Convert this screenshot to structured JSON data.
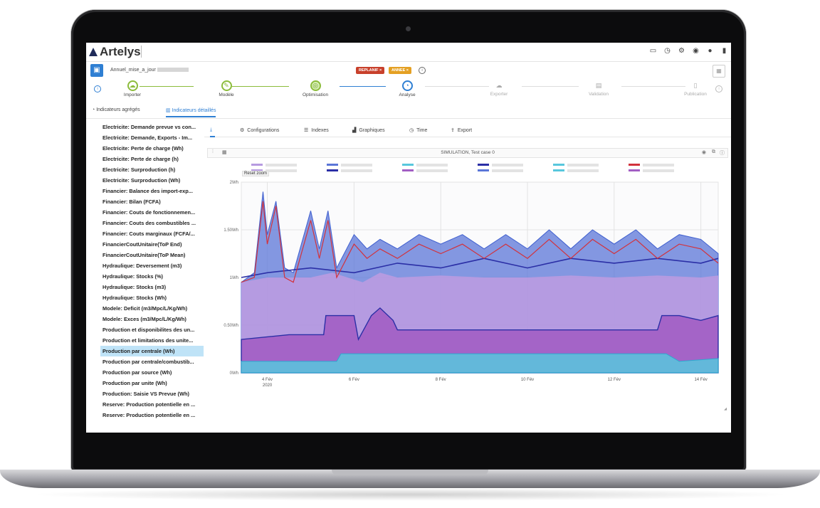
{
  "app": {
    "brand": "Artelys"
  },
  "project": {
    "name": "Annuel_mise_a_jour",
    "tags": [
      "REPLANIF ×",
      "ANNEE ×"
    ]
  },
  "steps": [
    {
      "label": "Importer",
      "icon": "☁",
      "state": "done"
    },
    {
      "label": "Modèle",
      "icon": "✎",
      "state": "done"
    },
    {
      "label": "Optimisation",
      "icon": "◎",
      "state": "opt"
    },
    {
      "label": "Analyse",
      "icon": "◔",
      "state": "active"
    },
    {
      "label": "Exporter",
      "icon": "☁",
      "state": "off"
    },
    {
      "label": "Validation",
      "icon": "▤",
      "state": "off"
    },
    {
      "label": "Publication",
      "icon": "▯",
      "state": "off"
    }
  ],
  "viewtabs": [
    {
      "label": "Indicateurs agrégés",
      "icon": "◔"
    },
    {
      "label": "Indicateurs détaillés",
      "icon": "▥"
    }
  ],
  "sidebar": {
    "selected_index": 22,
    "items": [
      "Electricite: Demande prevue vs con...",
      "Electricite: Demande, Exports - Im...",
      "Electricite: Perte de charge (Wh)",
      "Electricite: Perte de charge (h)",
      "Electricite: Surproduction (h)",
      "Electricite: Surproduction (Wh)",
      "Financier: Balance des import-exp...",
      "Financier: Bilan (FCFA)",
      "Financier: Couts de fonctionnemen...",
      "Financier: Couts des combustibles ...",
      "Financier: Couts marginaux (FCFA/...",
      "FinancierCoutUnitaire(ToP End)",
      "FinancierCoutUnitaire(ToP Mean)",
      "Hydraulique: Deversement (m3)",
      "Hydraulique: Stocks (%)",
      "Hydraulique: Stocks (m3)",
      "Hydraulique: Stocks (Wh)",
      "Modele: Deficit (m3/Mpc/L/Kg/Wh)",
      "Modele: Exces (m3/Mpc/L/Kg/Wh)",
      "Production et disponibilites des un...",
      "Production et limitations des unite...",
      "Production par centrale (Wh)",
      "Production par centrale (Wh)",
      "Production par centrale/combustib...",
      "Production par source (Wh)",
      "Production par unite (Wh)",
      "Production: Saisie VS Prevue (Wh)",
      "Reserve: Production potentielle en ...",
      "Reserve: Production potentielle en ..."
    ]
  },
  "subtabs": [
    {
      "label": "",
      "icon": "⤓"
    },
    {
      "label": "Configurations",
      "icon": "⚙"
    },
    {
      "label": "Indexes",
      "icon": "☰"
    },
    {
      "label": "Graphiques",
      "icon": "▟"
    },
    {
      "label": "Time",
      "icon": "◷"
    },
    {
      "label": "Export",
      "icon": "⇪"
    }
  ],
  "chart_header": {
    "title": "SIMULATION, Test case 0",
    "reset_zoom": "Reset zoom"
  },
  "colors": {
    "accent": "#2f7fd3",
    "area_purple": "#b79be0",
    "area_magenta": "#a25ec4",
    "band_blue": "#5b76d8",
    "band_cyan": "#58c7dd",
    "line_red": "#d2323c",
    "line_navy": "#2b2fa6"
  },
  "chart_data": {
    "type": "area",
    "title": "SIMULATION, Test case 0",
    "ylabel": "",
    "yticks": [
      "0Wh",
      "0.50Wh",
      "1Wh",
      "1.50Wh",
      "2Wh"
    ],
    "ylim": [
      0,
      2.0
    ],
    "xticks": [
      {
        "label": "4 Fév",
        "sub": "2020",
        "day": 4
      },
      {
        "label": "6 Fév",
        "sub": "",
        "day": 6
      },
      {
        "label": "8 Fév",
        "sub": "",
        "day": 8
      },
      {
        "label": "10 Fév",
        "sub": "",
        "day": 10
      },
      {
        "label": "12 Fév",
        "sub": "",
        "day": 12
      },
      {
        "label": "14 Fév",
        "sub": "",
        "day": 14
      }
    ],
    "xlim": [
      3.4,
      14.4
    ],
    "grid": true,
    "series": [
      {
        "style": "base_cyan_band",
        "x": [
          3.4,
          5.6,
          5.7,
          6.0,
          6.5,
          13.2,
          13.5,
          14.4
        ],
        "y": [
          0.12,
          0.12,
          0.2,
          0.2,
          0.2,
          0.2,
          0.12,
          0.15
        ]
      },
      {
        "style": "magenta_area",
        "x": [
          3.4,
          4.5,
          5.3,
          5.35,
          6.0,
          6.1,
          6.4,
          6.6,
          6.9,
          7.0,
          13.0,
          13.1,
          13.5,
          14.0,
          14.4
        ],
        "y": [
          0.35,
          0.4,
          0.4,
          0.6,
          0.6,
          0.35,
          0.6,
          0.68,
          0.55,
          0.45,
          0.45,
          0.6,
          0.6,
          0.55,
          0.6
        ]
      },
      {
        "style": "purple_area",
        "x": [
          3.4,
          4.0,
          5.0,
          5.5,
          6.2,
          6.6,
          7.0,
          8.0,
          9.0,
          10.0,
          11.0,
          12.0,
          13.0,
          14.0,
          14.4
        ],
        "y": [
          0.95,
          1.0,
          1.0,
          1.05,
          0.95,
          1.05,
          1.0,
          1.02,
          1.0,
          1.0,
          1.02,
          1.0,
          1.02,
          1.0,
          1.02
        ]
      },
      {
        "style": "blue_band",
        "x": [
          3.4,
          3.7,
          3.9,
          4.0,
          4.2,
          4.4,
          4.6,
          5.0,
          5.2,
          5.4,
          5.6,
          6.0,
          6.3,
          6.6,
          7.0,
          7.5,
          8.0,
          8.5,
          9.0,
          9.5,
          10.0,
          10.5,
          11.0,
          11.5,
          12.0,
          12.5,
          13.0,
          13.5,
          14.0,
          14.4
        ],
        "y": [
          0.95,
          1.05,
          1.9,
          1.45,
          1.8,
          1.1,
          1.05,
          1.7,
          1.3,
          1.7,
          1.1,
          1.45,
          1.3,
          1.4,
          1.3,
          1.45,
          1.35,
          1.45,
          1.3,
          1.45,
          1.3,
          1.5,
          1.3,
          1.5,
          1.35,
          1.5,
          1.3,
          1.45,
          1.4,
          1.25
        ]
      },
      {
        "style": "red_line",
        "x": [
          3.4,
          3.7,
          3.9,
          4.0,
          4.2,
          4.4,
          4.6,
          5.0,
          5.2,
          5.4,
          5.6,
          6.0,
          6.3,
          6.6,
          7.0,
          7.5,
          8.0,
          8.5,
          9.0,
          9.5,
          10.0,
          10.5,
          11.0,
          11.5,
          12.0,
          12.5,
          13.0,
          13.5,
          14.0,
          14.4
        ],
        "y": [
          0.95,
          1.0,
          1.8,
          1.35,
          1.75,
          1.0,
          0.95,
          1.6,
          1.2,
          1.6,
          1.0,
          1.35,
          1.2,
          1.3,
          1.2,
          1.35,
          1.25,
          1.35,
          1.2,
          1.35,
          1.2,
          1.4,
          1.2,
          1.4,
          1.25,
          1.4,
          1.2,
          1.35,
          1.3,
          1.15
        ]
      },
      {
        "style": "navy_line",
        "x": [
          3.4,
          4.0,
          5.0,
          6.0,
          7.0,
          8.0,
          9.0,
          10.0,
          11.0,
          12.0,
          13.0,
          14.0,
          14.4
        ],
        "y": [
          1.0,
          1.05,
          1.1,
          1.05,
          1.15,
          1.1,
          1.2,
          1.1,
          1.2,
          1.15,
          1.2,
          1.15,
          1.2
        ]
      }
    ]
  }
}
